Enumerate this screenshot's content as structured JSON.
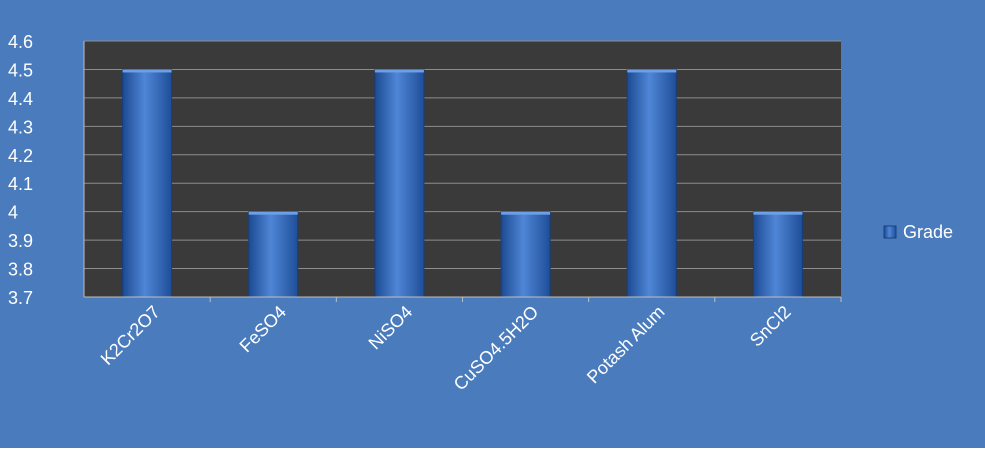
{
  "chart_data": {
    "type": "bar",
    "categories": [
      "K2Cr2O7",
      "FeSO4",
      "NiSO4",
      "CuSO4.5H2O",
      "Potash Alum",
      "SnCl2"
    ],
    "series": [
      {
        "name": "Grade",
        "values": [
          4.5,
          4.0,
          4.5,
          4.0,
          4.5,
          4.0
        ]
      }
    ],
    "ylim": [
      3.7,
      4.6
    ],
    "yticks": [
      "3.7",
      "3.8",
      "3.9",
      "4",
      "4.1",
      "4.2",
      "4.3",
      "4.4",
      "4.5",
      "4.6"
    ],
    "grid": true,
    "legend": {
      "position": "right",
      "entries": [
        "Grade"
      ]
    },
    "colors": {
      "background": "#4a7cbd",
      "plot_area": "#3a3a3a",
      "bar": "#2f62b0",
      "grid": "#8d8d8d",
      "text": "#ffffff"
    }
  }
}
